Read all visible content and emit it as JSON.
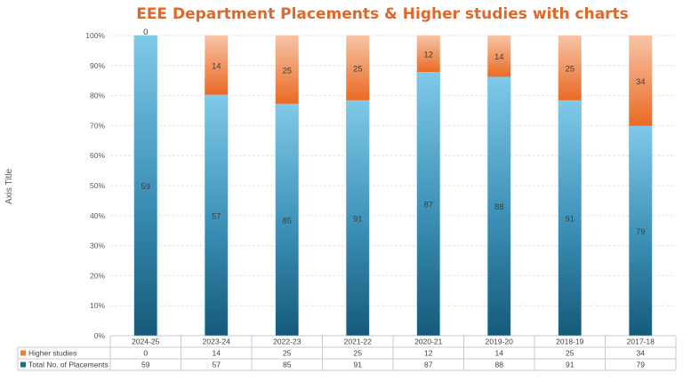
{
  "chart_data": {
    "type": "bar",
    "stacked": "percent",
    "title": "EEE Department Placements & Higher studies with charts",
    "xlabel": "",
    "ylabel": "Axis Title",
    "ylim": [
      0,
      100
    ],
    "yticks": [
      "0%",
      "10%",
      "20%",
      "30%",
      "40%",
      "50%",
      "60%",
      "70%",
      "80%",
      "90%",
      "100%"
    ],
    "categories": [
      "2024-25",
      "2023-24",
      "2022-23",
      "2021-22",
      "2020-21",
      "2019-20",
      "2018-19",
      "2017-18"
    ],
    "series": [
      {
        "name": "Total No. of Placements",
        "color": "#1f6e91",
        "values": [
          59,
          57,
          85,
          91,
          87,
          88,
          91,
          79
        ]
      },
      {
        "name": "Higher studies",
        "color": "#ed7d31",
        "values": [
          0,
          14,
          25,
          25,
          12,
          14,
          25,
          34
        ]
      }
    ],
    "legend": "data-table",
    "grid": true
  }
}
